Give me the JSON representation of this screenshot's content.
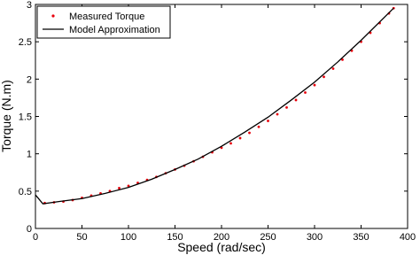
{
  "chart_data": {
    "type": "scatter",
    "xlabel": "Speed (rad/sec)",
    "ylabel": "Torque (N.m)",
    "xlim": [
      0,
      400
    ],
    "xticks": [
      0,
      50,
      100,
      150,
      200,
      250,
      300,
      350,
      400
    ],
    "ylim": [
      0,
      3
    ],
    "yticks": [
      0,
      0.5,
      1,
      1.5,
      2,
      2.5,
      3
    ],
    "legend": "upper left",
    "series": [
      {
        "name": "Measured Torque",
        "color": "#e8000b",
        "style": "markers",
        "x": [
          10,
          20,
          30,
          40,
          50,
          60,
          70,
          80,
          90,
          100,
          110,
          120,
          130,
          140,
          150,
          160,
          170,
          180,
          190,
          200,
          210,
          220,
          230,
          240,
          250,
          260,
          270,
          280,
          290,
          300,
          310,
          320,
          330,
          340,
          350,
          360,
          370,
          380,
          385
        ],
        "values": [
          0.34,
          0.35,
          0.36,
          0.38,
          0.41,
          0.44,
          0.47,
          0.5,
          0.54,
          0.57,
          0.61,
          0.65,
          0.69,
          0.74,
          0.79,
          0.84,
          0.9,
          0.96,
          1.02,
          1.08,
          1.14,
          1.21,
          1.28,
          1.36,
          1.44,
          1.53,
          1.62,
          1.72,
          1.82,
          1.92,
          2.03,
          2.14,
          2.26,
          2.38,
          2.5,
          2.62,
          2.75,
          2.88,
          2.95
        ]
      },
      {
        "name": "Model Approximation",
        "color": "#000000",
        "style": "line",
        "x": [
          0,
          8,
          25,
          50,
          75,
          100,
          125,
          150,
          175,
          200,
          225,
          250,
          275,
          300,
          325,
          350,
          385
        ],
        "values": [
          0.45,
          0.33,
          0.36,
          0.4,
          0.47,
          0.55,
          0.66,
          0.79,
          0.93,
          1.1,
          1.29,
          1.49,
          1.72,
          1.96,
          2.23,
          2.52,
          2.95
        ]
      }
    ]
  }
}
